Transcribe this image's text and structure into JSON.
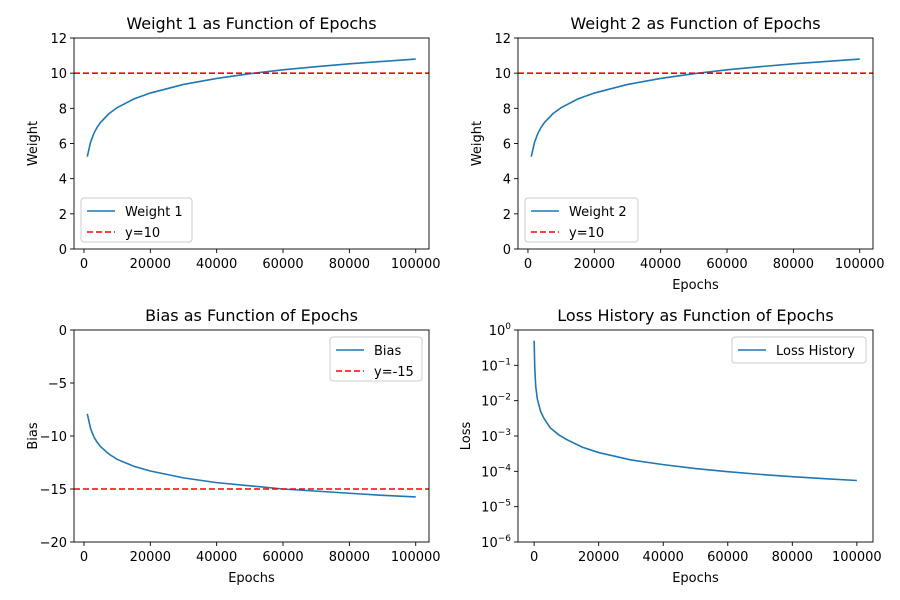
{
  "chart_data": [
    {
      "type": "line",
      "title": "Weight 1 as Function of Epochs",
      "xlabel": "",
      "ylabel": "Weight",
      "xlim": [
        -3000,
        104000
      ],
      "ylim": [
        0,
        12
      ],
      "yscale": "linear",
      "xticks": [
        0,
        20000,
        40000,
        60000,
        80000,
        100000
      ],
      "xtick_labels": [
        "0",
        "20000",
        "40000",
        "60000",
        "80000",
        "100000"
      ],
      "yticks": [
        0,
        2,
        4,
        6,
        8,
        10,
        12
      ],
      "ytick_labels": [
        "0",
        "2",
        "4",
        "6",
        "8",
        "10",
        "12"
      ],
      "legend_position": "lower-left",
      "series": [
        {
          "name": "Weight 1",
          "color": "#1f77b4",
          "style": "solid",
          "x": [
            1000,
            2000,
            3000,
            4000,
            5000,
            7500,
            10000,
            15000,
            20000,
            30000,
            40000,
            50000,
            60000,
            70000,
            80000,
            90000,
            100000
          ],
          "values": [
            5.25,
            6.08,
            6.58,
            6.93,
            7.2,
            7.69,
            8.04,
            8.53,
            8.87,
            9.36,
            9.7,
            9.97,
            10.19,
            10.37,
            10.53,
            10.67,
            10.8
          ]
        },
        {
          "name": "y=10",
          "color": "#ff0000",
          "style": "dashed",
          "hline": 10
        }
      ]
    },
    {
      "type": "line",
      "title": "Weight 2 as Function of Epochs",
      "xlabel": "Epochs",
      "ylabel": "Weight",
      "xlim": [
        -3000,
        104000
      ],
      "ylim": [
        0,
        12
      ],
      "yscale": "linear",
      "xticks": [
        0,
        20000,
        40000,
        60000,
        80000,
        100000
      ],
      "xtick_labels": [
        "0",
        "20000",
        "40000",
        "60000",
        "80000",
        "100000"
      ],
      "yticks": [
        0,
        2,
        4,
        6,
        8,
        10,
        12
      ],
      "ytick_labels": [
        "0",
        "2",
        "4",
        "6",
        "8",
        "10",
        "12"
      ],
      "legend_position": "lower-left",
      "series": [
        {
          "name": "Weight 2",
          "color": "#1f77b4",
          "style": "solid",
          "x": [
            1000,
            2000,
            3000,
            4000,
            5000,
            7500,
            10000,
            15000,
            20000,
            30000,
            40000,
            50000,
            60000,
            70000,
            80000,
            90000,
            100000
          ],
          "values": [
            5.25,
            6.08,
            6.58,
            6.93,
            7.2,
            7.69,
            8.04,
            8.53,
            8.87,
            9.36,
            9.7,
            9.97,
            10.19,
            10.37,
            10.53,
            10.67,
            10.8
          ]
        },
        {
          "name": "y=10",
          "color": "#ff0000",
          "style": "dashed",
          "hline": 10
        }
      ]
    },
    {
      "type": "line",
      "title": "Bias as Function of Epochs",
      "xlabel": "Epochs",
      "ylabel": "Bias",
      "xlim": [
        -3000,
        104000
      ],
      "ylim": [
        -20,
        0
      ],
      "yscale": "linear",
      "xticks": [
        0,
        20000,
        40000,
        60000,
        80000,
        100000
      ],
      "xtick_labels": [
        "0",
        "20000",
        "40000",
        "60000",
        "80000",
        "100000"
      ],
      "yticks": [
        -20,
        -15,
        -10,
        -5,
        0
      ],
      "ytick_labels": [
        "−20",
        "−15",
        "−10",
        "−5",
        "0"
      ],
      "legend_position": "upper-right",
      "series": [
        {
          "name": "Bias",
          "color": "#1f77b4",
          "style": "solid",
          "x": [
            1000,
            2000,
            3000,
            4000,
            5000,
            7500,
            10000,
            15000,
            20000,
            30000,
            40000,
            50000,
            60000,
            70000,
            80000,
            90000,
            100000
          ],
          "values": [
            -7.9,
            -9.3,
            -10.1,
            -10.6,
            -11.0,
            -11.7,
            -12.2,
            -12.85,
            -13.3,
            -13.95,
            -14.4,
            -14.7,
            -15.0,
            -15.2,
            -15.4,
            -15.6,
            -15.75
          ]
        },
        {
          "name": "y=-15",
          "color": "#ff0000",
          "style": "dashed",
          "hline": -15
        }
      ]
    },
    {
      "type": "line",
      "title": "Loss History as Function of Epochs",
      "xlabel": "Epochs",
      "ylabel": "Loss",
      "xlim": [
        -5000,
        105000
      ],
      "ylim": [
        1e-06,
        1
      ],
      "yscale": "log",
      "xticks": [
        0,
        20000,
        40000,
        60000,
        80000,
        100000
      ],
      "xtick_labels": [
        "0",
        "20000",
        "40000",
        "60000",
        "80000",
        "100000"
      ],
      "yticks": [
        1e-06,
        1e-05,
        0.0001,
        0.001,
        0.01,
        0.1,
        1
      ],
      "ytick_labels": [
        [
          "10",
          "−6"
        ],
        [
          "10",
          "−5"
        ],
        [
          "10",
          "−4"
        ],
        [
          "10",
          "−3"
        ],
        [
          "10",
          "−2"
        ],
        [
          "10",
          "−1"
        ],
        [
          "10",
          "0"
        ]
      ],
      "legend_position": "upper-right",
      "series": [
        {
          "name": "Loss History",
          "color": "#1f77b4",
          "style": "solid",
          "x": [
            0,
            100,
            200,
            500,
            1000,
            2000,
            3000,
            5000,
            7500,
            10000,
            15000,
            20000,
            30000,
            40000,
            50000,
            60000,
            70000,
            80000,
            90000,
            100000
          ],
          "values": [
            0.5,
            0.2,
            0.08,
            0.025,
            0.011,
            0.005,
            0.0032,
            0.0017,
            0.0011,
            0.0008,
            0.00048,
            0.00034,
            0.00021,
            0.000155,
            0.00012,
            9.75e-05,
            8.2e-05,
            7.05e-05,
            6.2e-05,
            5.5e-05
          ]
        }
      ]
    }
  ]
}
